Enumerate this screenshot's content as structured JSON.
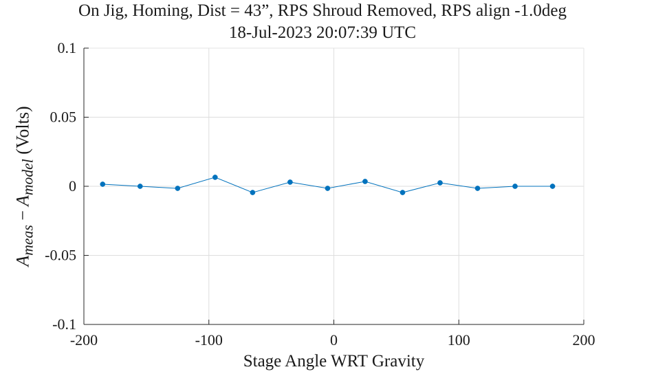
{
  "chart_data": {
    "type": "line",
    "title_line1": "On Jig, Homing, Dist = 43”, RPS Shroud Removed, RPS align -1.0deg",
    "title_line2": "18-Jul-2023 20:07:39 UTC",
    "xlabel": "Stage Angle WRT Gravity",
    "ylabel": {
      "base": "A",
      "sub1": "meas",
      "minus": "−",
      "sub2": "model",
      "unit": "(Volts)"
    },
    "xlim": [
      -200,
      200
    ],
    "ylim": [
      -0.1,
      0.1
    ],
    "xticks": [
      -200,
      -100,
      0,
      100,
      200
    ],
    "xtick_labels": [
      "-200",
      "-100",
      "0",
      "100",
      "200"
    ],
    "yticks": [
      -0.1,
      -0.05,
      0,
      0.05,
      0.1
    ],
    "ytick_labels": [
      "-0.1",
      "-0.05",
      "0",
      "0.05",
      "0.1"
    ],
    "grid": true,
    "series": [
      {
        "color": "#0072BD",
        "marker": "circle",
        "x": [
          -185,
          -155,
          -125,
          -95,
          -65,
          -35,
          -5,
          25,
          55,
          85,
          115,
          145,
          175
        ],
        "y": [
          0.0015,
          0.0,
          -0.0015,
          0.0065,
          -0.0045,
          0.003,
          -0.0015,
          0.0035,
          -0.0045,
          0.0025,
          -0.0015,
          0.0,
          0.0
        ]
      }
    ]
  }
}
